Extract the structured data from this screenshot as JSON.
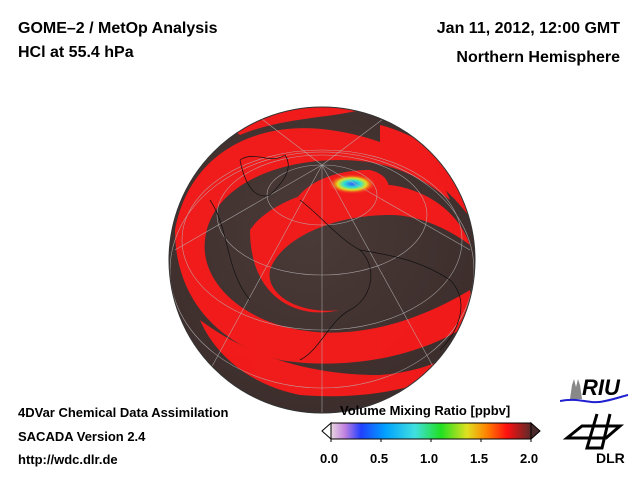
{
  "header": {
    "title_line1": "GOME–2 / MetOp Analysis",
    "title_line2": "HCl at 55.4 hPa",
    "date": "Jan 11, 2012, 12:00 GMT",
    "region": "Northern Hemisphere"
  },
  "footer": {
    "line1": "4DVar Chemical Data Assimilation",
    "line2": "SACADA Version 2.4",
    "line3": "http://wdc.dlr.de"
  },
  "colorbar": {
    "title": "Volume Mixing Ratio [ppbv]",
    "ticks": [
      "0.0",
      "0.5",
      "1.0",
      "1.5",
      "2.0"
    ],
    "range": [
      0.0,
      2.0
    ],
    "colors": [
      "#e8d8e0",
      "#c080e0",
      "#2040ff",
      "#00a0ff",
      "#40e0e0",
      "#20e020",
      "#e0e020",
      "#ff8000",
      "#ff1010",
      "#5a2a2a"
    ]
  },
  "logos": {
    "riu": "RIU",
    "dlr": "DLR"
  }
}
